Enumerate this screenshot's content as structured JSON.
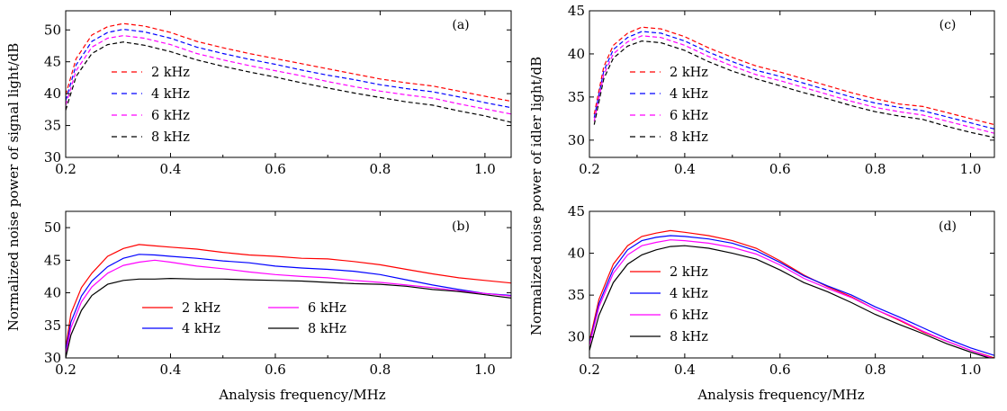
{
  "figure": {
    "xlabel_left": "Analysis frequency/MHz",
    "xlabel_right": "Analysis frequency/MHz",
    "ylabel_left": "Normalized noise power of signal light/dB",
    "ylabel_right": "Normalized noise power of idler light/dB"
  },
  "chart_data": [
    {
      "type": "line",
      "panel": "(a)",
      "line_style": "dashed",
      "xlim": [
        0.2,
        1.05
      ],
      "ylim": [
        30,
        53
      ],
      "xticks": [
        0.2,
        0.4,
        0.6,
        0.8,
        1.0
      ],
      "xtick_labels": [
        "0.2",
        "0.4",
        "0.6",
        "0.8",
        "1.0"
      ],
      "yticks": [
        30,
        35,
        40,
        45,
        50
      ],
      "ytick_labels": [
        "30",
        "35",
        "40",
        "45",
        "50"
      ],
      "legend_position": "left",
      "x": [
        0.2,
        0.22,
        0.25,
        0.28,
        0.31,
        0.35,
        0.4,
        0.45,
        0.5,
        0.55,
        0.6,
        0.65,
        0.7,
        0.75,
        0.8,
        0.85,
        0.9,
        0.95,
        1.0,
        1.05
      ],
      "series": [
        {
          "name": "2 kHz",
          "color": "#ff0000",
          "values": [
            39.8,
            45.5,
            49.2,
            50.5,
            51.0,
            50.6,
            49.6,
            48.2,
            47.2,
            46.3,
            45.5,
            44.7,
            43.9,
            43.1,
            42.3,
            41.7,
            41.2,
            40.4,
            39.6,
            38.8
          ]
        },
        {
          "name": "4 kHz",
          "color": "#0000ff",
          "values": [
            38.9,
            44.5,
            48.2,
            49.6,
            50.1,
            49.7,
            48.7,
            47.3,
            46.3,
            45.4,
            44.6,
            43.7,
            42.9,
            42.2,
            41.4,
            40.8,
            40.3,
            39.5,
            38.6,
            37.8
          ]
        },
        {
          "name": "6 kHz",
          "color": "#ff00ff",
          "values": [
            38.2,
            43.6,
            47.3,
            48.7,
            49.1,
            48.7,
            47.7,
            46.3,
            45.3,
            44.4,
            43.6,
            42.8,
            41.9,
            41.1,
            40.4,
            39.8,
            39.3,
            38.4,
            37.6,
            36.8
          ]
        },
        {
          "name": "8 kHz",
          "color": "#000000",
          "values": [
            37.4,
            42.7,
            46.3,
            47.7,
            48.1,
            47.6,
            46.6,
            45.3,
            44.3,
            43.4,
            42.6,
            41.7,
            40.9,
            40.1,
            39.4,
            38.7,
            38.2,
            37.3,
            36.5,
            35.5
          ]
        }
      ]
    },
    {
      "type": "line",
      "panel": "(b)",
      "line_style": "solid",
      "xlim": [
        0.2,
        1.05
      ],
      "ylim": [
        30,
        52.5
      ],
      "xticks": [
        0.2,
        0.4,
        0.6,
        0.8,
        1.0
      ],
      "xtick_labels": [
        "0.2",
        "0.4",
        "0.6",
        "0.8",
        "1.0"
      ],
      "yticks": [
        30,
        35,
        40,
        45,
        50
      ],
      "ytick_labels": [
        "30",
        "35",
        "40",
        "45",
        "50"
      ],
      "legend_position": "bottom-center",
      "x": [
        0.2,
        0.21,
        0.23,
        0.25,
        0.28,
        0.31,
        0.34,
        0.37,
        0.4,
        0.45,
        0.5,
        0.55,
        0.6,
        0.65,
        0.7,
        0.75,
        0.8,
        0.85,
        0.9,
        0.95,
        1.0,
        1.05
      ],
      "series": [
        {
          "name": "2 kHz",
          "color": "#ff0000",
          "values": [
            31.5,
            36.8,
            40.8,
            43.0,
            45.6,
            46.8,
            47.4,
            47.2,
            47.0,
            46.7,
            46.2,
            45.8,
            45.6,
            45.3,
            45.2,
            44.8,
            44.3,
            43.6,
            42.9,
            42.3,
            41.9,
            41.5
          ]
        },
        {
          "name": "4 kHz",
          "color": "#0000ff",
          "values": [
            31.0,
            35.5,
            39.5,
            41.8,
            44.0,
            45.3,
            45.9,
            45.8,
            45.6,
            45.3,
            44.9,
            44.6,
            44.1,
            43.8,
            43.6,
            43.3,
            42.8,
            42.0,
            41.2,
            40.5,
            39.9,
            39.6
          ]
        },
        {
          "name": "6 kHz",
          "color": "#ff00ff",
          "values": [
            30.5,
            34.6,
            38.6,
            40.9,
            43.0,
            44.2,
            44.7,
            45.0,
            44.7,
            44.1,
            43.7,
            43.2,
            42.8,
            42.5,
            42.3,
            41.9,
            41.6,
            41.2,
            40.8,
            40.3,
            39.9,
            39.5
          ]
        },
        {
          "name": "8 kHz",
          "color": "#000000",
          "values": [
            30.0,
            33.5,
            37.3,
            39.6,
            41.3,
            41.9,
            42.1,
            42.1,
            42.2,
            42.1,
            42.1,
            42.0,
            41.9,
            41.8,
            41.6,
            41.4,
            41.3,
            41.0,
            40.5,
            40.2,
            39.7,
            39.2
          ]
        }
      ]
    },
    {
      "type": "line",
      "panel": "(c)",
      "line_style": "dashed",
      "xlim": [
        0.2,
        1.05
      ],
      "ylim": [
        28,
        45
      ],
      "xticks": [
        0.2,
        0.4,
        0.6,
        0.8,
        1.0
      ],
      "xtick_labels": [
        "0.2",
        "0.4",
        "0.6",
        "0.8",
        "1.0"
      ],
      "yticks": [
        30,
        35,
        40,
        45
      ],
      "ytick_labels": [
        "30",
        "35",
        "40",
        "45"
      ],
      "legend_position": "center-left",
      "x": [
        0.21,
        0.23,
        0.25,
        0.28,
        0.31,
        0.35,
        0.4,
        0.45,
        0.5,
        0.55,
        0.6,
        0.65,
        0.7,
        0.75,
        0.8,
        0.85,
        0.9,
        0.95,
        1.0,
        1.05
      ],
      "series": [
        {
          "name": "2 kHz",
          "color": "#ff0000",
          "values": [
            33.0,
            38.5,
            41.0,
            42.4,
            43.1,
            42.9,
            42.0,
            40.7,
            39.6,
            38.6,
            37.9,
            37.1,
            36.3,
            35.5,
            34.8,
            34.2,
            33.9,
            33.2,
            32.5,
            31.8
          ]
        },
        {
          "name": "4 kHz",
          "color": "#0000ff",
          "values": [
            32.6,
            38.0,
            40.5,
            41.9,
            42.6,
            42.4,
            41.5,
            40.2,
            39.1,
            38.1,
            37.4,
            36.6,
            35.8,
            35.0,
            34.3,
            33.8,
            33.4,
            32.7,
            32.0,
            31.3
          ]
        },
        {
          "name": "6 kHz",
          "color": "#ff00ff",
          "values": [
            32.2,
            37.6,
            40.0,
            41.4,
            42.1,
            41.9,
            41.0,
            39.7,
            38.6,
            37.6,
            36.9,
            36.1,
            35.3,
            34.5,
            33.8,
            33.3,
            32.9,
            32.2,
            31.5,
            30.8
          ]
        },
        {
          "name": "8 kHz",
          "color": "#000000",
          "values": [
            31.8,
            37.1,
            39.5,
            40.9,
            41.5,
            41.3,
            40.4,
            39.1,
            38.0,
            37.1,
            36.3,
            35.5,
            34.8,
            34.0,
            33.3,
            32.8,
            32.4,
            31.6,
            30.9,
            30.3
          ]
        }
      ]
    },
    {
      "type": "line",
      "panel": "(d)",
      "line_style": "solid",
      "xlim": [
        0.2,
        1.05
      ],
      "ylim": [
        27.5,
        45
      ],
      "xticks": [
        0.2,
        0.4,
        0.6,
        0.8,
        1.0
      ],
      "xtick_labels": [
        "0.2",
        "0.4",
        "0.6",
        "0.8",
        "1.0"
      ],
      "yticks": [
        30,
        35,
        40,
        45
      ],
      "ytick_labels": [
        "30",
        "35",
        "40",
        "45"
      ],
      "legend_position": "left",
      "x": [
        0.2,
        0.22,
        0.25,
        0.28,
        0.31,
        0.34,
        0.37,
        0.4,
        0.45,
        0.5,
        0.55,
        0.6,
        0.65,
        0.7,
        0.75,
        0.8,
        0.85,
        0.9,
        0.95,
        1.0,
        1.05
      ],
      "series": [
        {
          "name": "2 kHz",
          "color": "#ff0000",
          "values": [
            29.5,
            34.5,
            38.7,
            40.9,
            42.0,
            42.4,
            42.7,
            42.5,
            42.1,
            41.5,
            40.6,
            39.1,
            37.4,
            36.0,
            34.8,
            33.3,
            32.0,
            30.6,
            29.5,
            28.4,
            27.5
          ]
        },
        {
          "name": "4 kHz",
          "color": "#0000ff",
          "values": [
            29.2,
            34.0,
            38.1,
            40.4,
            41.5,
            41.9,
            42.1,
            42.0,
            41.7,
            41.2,
            40.3,
            38.9,
            37.3,
            36.1,
            35.0,
            33.6,
            32.4,
            31.1,
            29.8,
            28.7,
            27.8
          ]
        },
        {
          "name": "6 kHz",
          "color": "#ff00ff",
          "values": [
            29.0,
            33.6,
            37.6,
            39.8,
            40.9,
            41.3,
            41.6,
            41.5,
            41.2,
            40.7,
            39.9,
            38.6,
            37.0,
            35.8,
            34.7,
            33.3,
            32.1,
            30.7,
            29.5,
            28.4,
            27.4
          ]
        },
        {
          "name": "8 kHz",
          "color": "#000000",
          "values": [
            28.4,
            32.6,
            36.5,
            38.7,
            39.8,
            40.4,
            40.8,
            40.9,
            40.6,
            40.0,
            39.3,
            38.0,
            36.5,
            35.4,
            34.1,
            32.7,
            31.5,
            30.4,
            29.2,
            28.2,
            27.3
          ]
        }
      ]
    }
  ]
}
